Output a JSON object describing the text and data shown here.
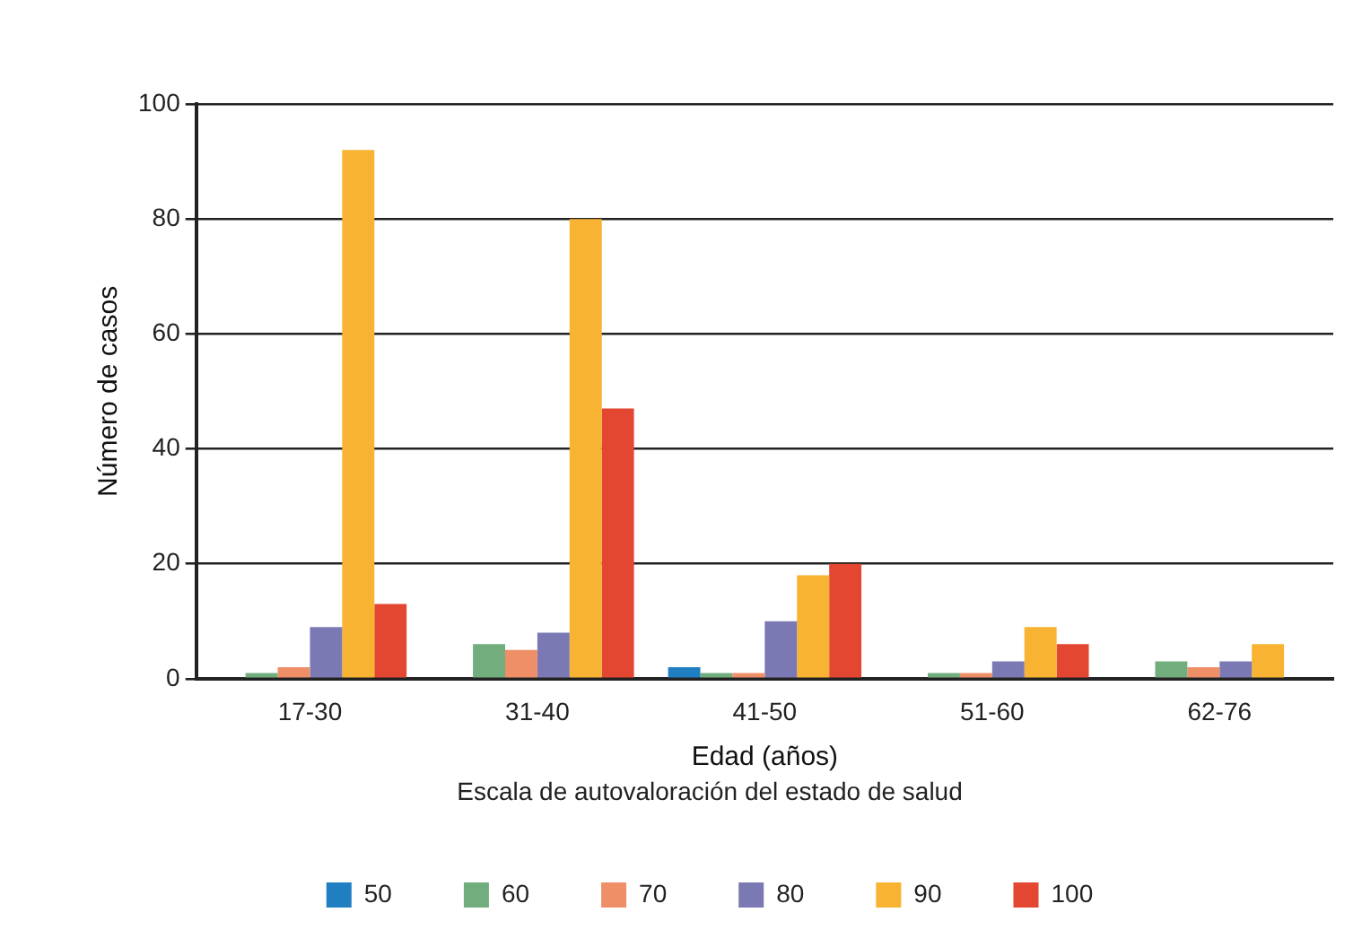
{
  "chart_data": {
    "type": "bar",
    "xlabel": "Edad (años)",
    "ylabel": "Número de casos",
    "legend_title": "Escala de autovaloración del estado de salud",
    "categories": [
      "17-30",
      "31-40",
      "41-50",
      "51-60",
      "62-76"
    ],
    "series": [
      {
        "name": "50",
        "color": "#1f7fc1",
        "values": [
          0,
          0,
          2,
          0,
          0
        ]
      },
      {
        "name": "60",
        "color": "#72ad7e",
        "values": [
          1,
          6,
          1,
          1,
          3
        ]
      },
      {
        "name": "70",
        "color": "#ef8f68",
        "values": [
          2,
          5,
          1,
          1,
          2
        ]
      },
      {
        "name": "80",
        "color": "#7b79b3",
        "values": [
          9,
          8,
          10,
          3,
          3
        ]
      },
      {
        "name": "90",
        "color": "#f8b332",
        "values": [
          92,
          80,
          18,
          9,
          6
        ]
      },
      {
        "name": "100",
        "color": "#e44731",
        "values": [
          13,
          47,
          20,
          6,
          0
        ]
      }
    ],
    "ylim": [
      0,
      100
    ],
    "yticks": [
      0,
      20,
      40,
      60,
      80,
      100
    ],
    "grid": "y",
    "legend": "bottom"
  }
}
